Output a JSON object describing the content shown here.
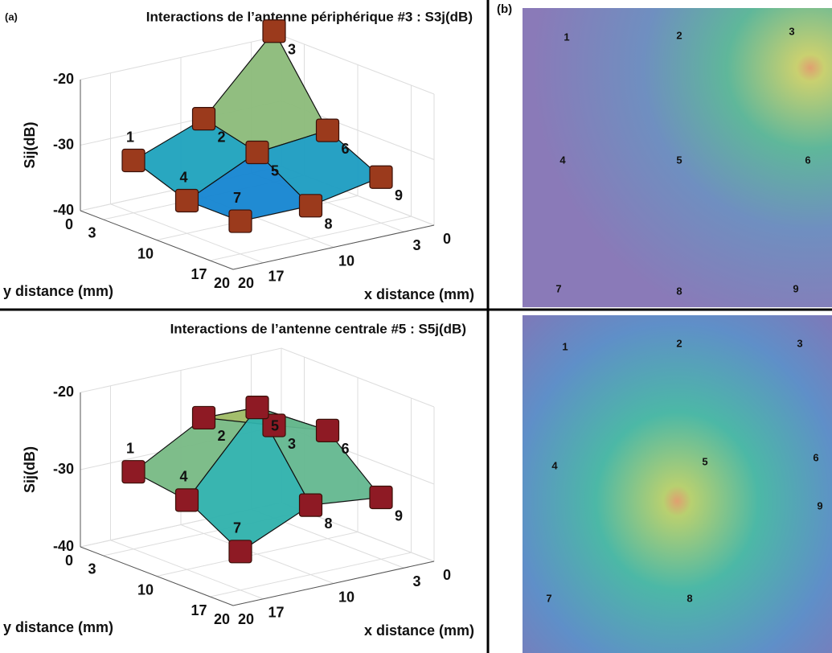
{
  "chart_data": [
    {
      "type": "surface3d",
      "panel_label": "(a)",
      "title": "Interactions de l’antenne périphérique #3 : S3j(dB)",
      "xlabel": "x distance (mm)",
      "ylabel": "y distance (mm)",
      "zlabel": "Sij(dB)",
      "xlim": [
        0,
        20
      ],
      "xticks": [
        0,
        3,
        10,
        17,
        20
      ],
      "ylim": [
        0,
        20
      ],
      "yticks": [
        0,
        3,
        10,
        17,
        20
      ],
      "zlim": [
        -40,
        -20
      ],
      "zticks": [
        -20,
        -30,
        -40
      ],
      "point_labels": [
        "1",
        "2",
        "3",
        "4",
        "5",
        "6",
        "7",
        "8",
        "9"
      ],
      "x": [
        17,
        10,
        3,
        17,
        10,
        3,
        17,
        10,
        3
      ],
      "y": [
        3,
        3,
        3,
        10,
        10,
        10,
        17,
        17,
        17
      ],
      "values": [
        -32,
        -28,
        -17,
        -35,
        -30,
        -29,
        -35,
        -35,
        -33
      ],
      "marker_color": "#9b3a1c"
    },
    {
      "type": "surface3d",
      "title": "Interactions de l’antenne centrale #5 : S5j(dB)",
      "xlabel": "x distance (mm)",
      "ylabel": "y distance (mm)",
      "zlabel": "Sij(dB)",
      "xlim": [
        0,
        20
      ],
      "xticks": [
        0,
        3,
        10,
        17,
        20
      ],
      "ylim": [
        0,
        20
      ],
      "yticks": [
        0,
        3,
        10,
        17,
        20
      ],
      "zlim": [
        -40,
        -20
      ],
      "zticks": [
        -20,
        -30,
        -40
      ],
      "point_labels": [
        "1",
        "2",
        "3",
        "4",
        "5",
        "6",
        "7",
        "8",
        "9"
      ],
      "x": [
        17,
        10,
        3,
        17,
        10,
        3,
        17,
        10,
        3
      ],
      "y": [
        3,
        3,
        3,
        10,
        10,
        10,
        17,
        17,
        17
      ],
      "values": [
        -30,
        -25,
        -28,
        -31,
        -21,
        -26,
        -35,
        -31,
        -32
      ],
      "marker_color": "#8e1a24"
    }
  ],
  "field_maps": [
    {
      "panel_label": "(b)",
      "labels": [
        "1",
        "2",
        "3",
        "4",
        "5",
        "6",
        "7",
        "8",
        "9"
      ]
    },
    {
      "labels": [
        "1",
        "2",
        "3",
        "4",
        "5",
        "6",
        "7",
        "8",
        "9"
      ]
    }
  ]
}
